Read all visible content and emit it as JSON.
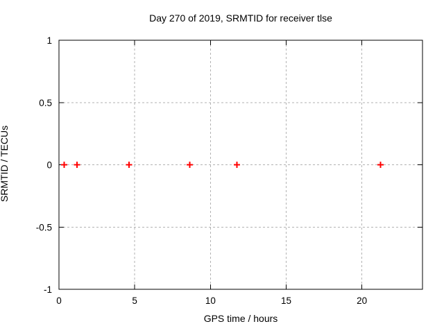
{
  "chart_data": {
    "type": "scatter",
    "title": "Day 270 of 2019, SRMTID for receiver tlse",
    "xlabel": "GPS time / hours",
    "ylabel": "SRMTID / TECUs",
    "xlim": [
      0,
      24
    ],
    "ylim": [
      -1,
      1
    ],
    "xticks": [
      0,
      5,
      10,
      15,
      20
    ],
    "xtick_labels": [
      "0",
      "5",
      "10",
      "15",
      "20"
    ],
    "yticks": [
      -1,
      -0.5,
      0,
      0.5,
      1
    ],
    "ytick_labels": [
      "-1",
      "-0.5",
      "0",
      "0.5",
      "1"
    ],
    "grid": true,
    "legend_position": "none",
    "marker": "plus",
    "marker_color": "#ff0000",
    "grid_color": "#b2b2b2",
    "axis_color": "#000000",
    "background_color": "#ffffff",
    "series": [
      {
        "name": "SRMTID",
        "x": [
          0.35,
          1.19,
          4.62,
          8.64,
          11.75,
          21.22
        ],
        "y": [
          0,
          0,
          0,
          0,
          0,
          0
        ]
      }
    ]
  }
}
